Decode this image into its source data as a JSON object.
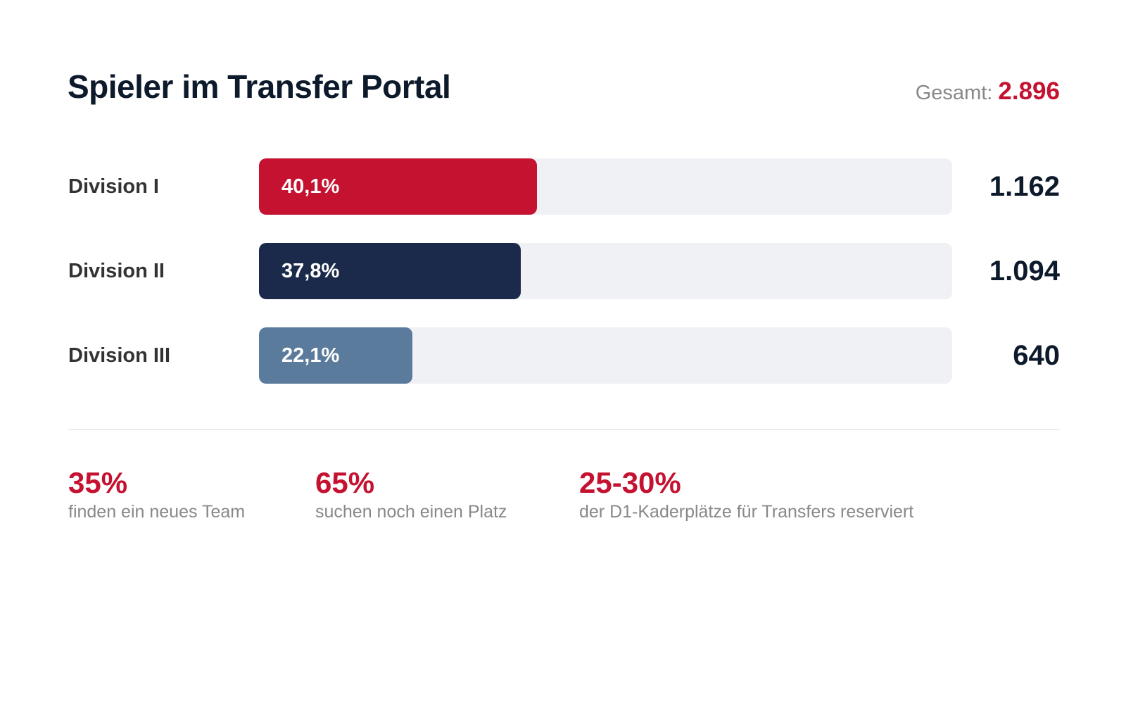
{
  "title": "Spieler im Transfer Portal",
  "total": {
    "label": "Gesamt:",
    "value": "2.896"
  },
  "chart_data": {
    "type": "bar",
    "orientation": "horizontal",
    "title": "Spieler im Transfer Portal",
    "categories": [
      "Division I",
      "Division II",
      "Division III"
    ],
    "values": [
      1162,
      1094,
      640
    ],
    "value_labels": [
      "1.162",
      "1.094",
      "640"
    ],
    "percent_values": [
      40.1,
      37.8,
      22.1
    ],
    "percent_labels": [
      "40,1%",
      "37,8%",
      "22,1%"
    ],
    "colors": [
      "#c41230",
      "#1b2a4a",
      "#5a7b9c"
    ],
    "track_color": "#f0f1f5",
    "xlim": [
      0,
      100
    ]
  },
  "stats": [
    {
      "value": "35%",
      "caption": "finden ein neues Team"
    },
    {
      "value": "65%",
      "caption": "suchen noch einen Platz"
    },
    {
      "value": "25-30%",
      "caption": "der D1-Kaderplätze für Transfers reserviert"
    }
  ]
}
